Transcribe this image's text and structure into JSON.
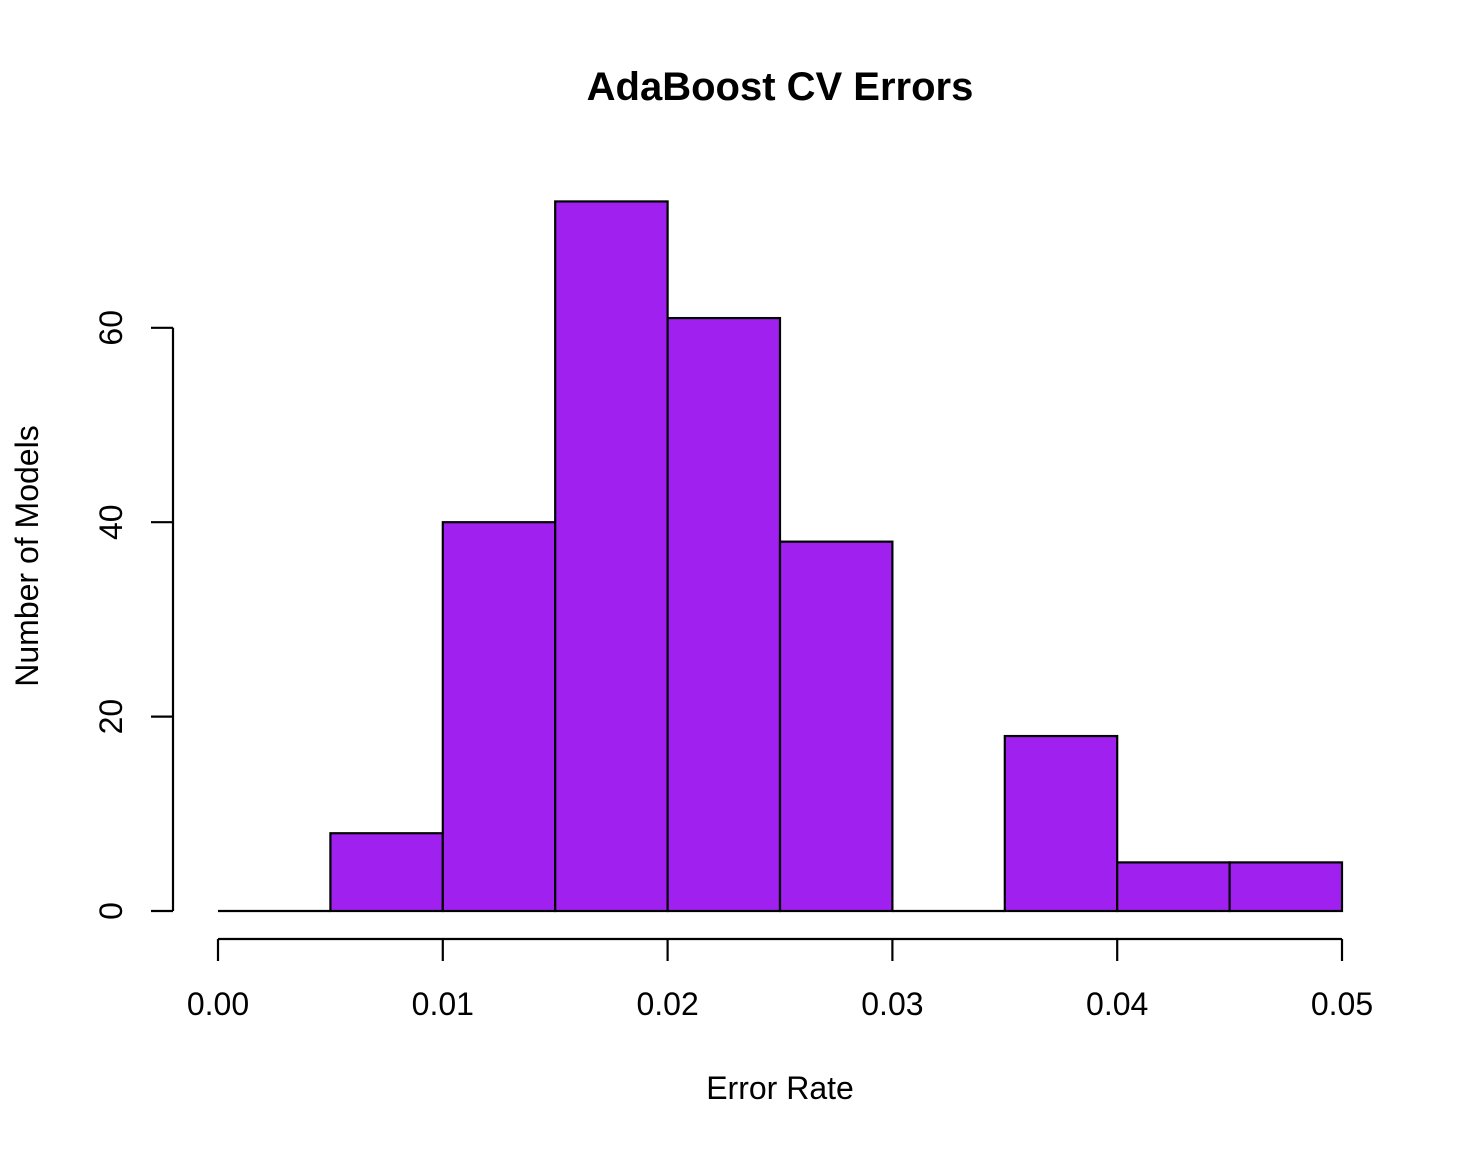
{
  "chart_data": {
    "type": "bar",
    "title": "AdaBoost CV Errors",
    "xlabel": "Error Rate",
    "ylabel": "Number of Models",
    "bins": [
      {
        "x0": 0.0,
        "x1": 0.005,
        "count": 0
      },
      {
        "x0": 0.005,
        "x1": 0.01,
        "count": 8
      },
      {
        "x0": 0.01,
        "x1": 0.015,
        "count": 40
      },
      {
        "x0": 0.015,
        "x1": 0.02,
        "count": 73
      },
      {
        "x0": 0.02,
        "x1": 0.025,
        "count": 61
      },
      {
        "x0": 0.025,
        "x1": 0.03,
        "count": 38
      },
      {
        "x0": 0.03,
        "x1": 0.035,
        "count": 0
      },
      {
        "x0": 0.035,
        "x1": 0.04,
        "count": 18
      },
      {
        "x0": 0.04,
        "x1": 0.045,
        "count": 5
      },
      {
        "x0": 0.045,
        "x1": 0.05,
        "count": 5
      }
    ],
    "xlim": [
      0.0,
      0.05
    ],
    "ylim": [
      0,
      73
    ],
    "xticks": [
      0.0,
      0.01,
      0.02,
      0.03,
      0.04,
      0.05
    ],
    "xtick_labels": [
      "0.00",
      "0.01",
      "0.02",
      "0.03",
      "0.04",
      "0.05"
    ],
    "yticks": [
      0,
      20,
      40,
      60
    ],
    "ytick_labels": [
      "0",
      "20",
      "40",
      "60"
    ],
    "bar_color": "#A020F0",
    "edge_color": "#000000",
    "grid": false
  }
}
